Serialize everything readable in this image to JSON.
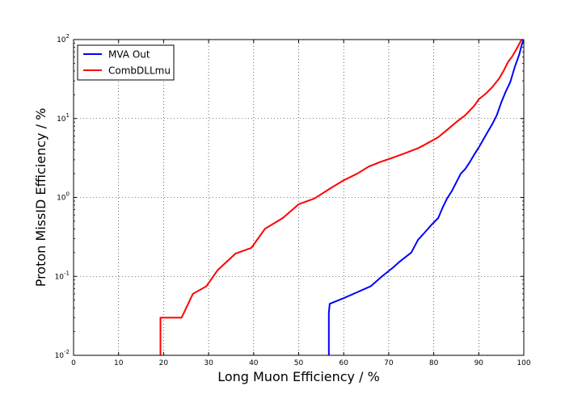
{
  "chart_data": {
    "type": "line",
    "title": "",
    "xlabel": "Long Muon Efficiency / %",
    "ylabel": "Proton MissID Efficiency / %",
    "xlim": [
      0,
      100
    ],
    "ylim": [
      0.01,
      100
    ],
    "yscale": "log",
    "grid": true,
    "legend_position": "top-left",
    "x_ticks": [
      "0",
      "10",
      "20",
      "30",
      "40",
      "50",
      "60",
      "70",
      "80",
      "90",
      "100"
    ],
    "y_ticks": [
      {
        "base": "10",
        "exp": "-2"
      },
      {
        "base": "10",
        "exp": "-1"
      },
      {
        "base": "10",
        "exp": "0"
      },
      {
        "base": "10",
        "exp": "1"
      },
      {
        "base": "10",
        "exp": "2"
      }
    ],
    "series": [
      {
        "name": "MVA Out",
        "color": "#0000ff",
        "points": [
          [
            56.7,
            0.01
          ],
          [
            56.7,
            0.035
          ],
          [
            56.9,
            0.045
          ],
          [
            60.0,
            0.053
          ],
          [
            63.0,
            0.063
          ],
          [
            66.0,
            0.075
          ],
          [
            68.5,
            0.1
          ],
          [
            71.0,
            0.13
          ],
          [
            72.5,
            0.155
          ],
          [
            75.0,
            0.2
          ],
          [
            76.5,
            0.29
          ],
          [
            78.0,
            0.36
          ],
          [
            79.5,
            0.45
          ],
          [
            81.0,
            0.55
          ],
          [
            82.0,
            0.75
          ],
          [
            83.0,
            0.98
          ],
          [
            84.0,
            1.2
          ],
          [
            85.0,
            1.55
          ],
          [
            86.0,
            2.0
          ],
          [
            87.0,
            2.3
          ],
          [
            88.0,
            2.8
          ],
          [
            89.0,
            3.5
          ],
          [
            90.0,
            4.3
          ],
          [
            91.0,
            5.4
          ],
          [
            92.0,
            6.8
          ],
          [
            93.0,
            8.5
          ],
          [
            94.0,
            11.0
          ],
          [
            95.0,
            16.0
          ],
          [
            96.0,
            22.0
          ],
          [
            97.0,
            29.0
          ],
          [
            98.0,
            45.0
          ],
          [
            99.0,
            65.0
          ],
          [
            99.6,
            88.0
          ],
          [
            100.0,
            100.0
          ]
        ]
      },
      {
        "name": "CombDLLmu",
        "color": "#ff0000",
        "points": [
          [
            19.3,
            0.01
          ],
          [
            19.3,
            0.03
          ],
          [
            24.0,
            0.03
          ],
          [
            26.5,
            0.06
          ],
          [
            29.5,
            0.075
          ],
          [
            32.0,
            0.12
          ],
          [
            36.0,
            0.195
          ],
          [
            39.5,
            0.23
          ],
          [
            42.5,
            0.4
          ],
          [
            46.5,
            0.55
          ],
          [
            50.0,
            0.82
          ],
          [
            53.5,
            0.97
          ],
          [
            57.0,
            1.3
          ],
          [
            60.0,
            1.65
          ],
          [
            63.0,
            2.0
          ],
          [
            65.5,
            2.45
          ],
          [
            68.0,
            2.8
          ],
          [
            71.0,
            3.2
          ],
          [
            74.0,
            3.7
          ],
          [
            76.5,
            4.2
          ],
          [
            79.0,
            5.0
          ],
          [
            81.0,
            5.8
          ],
          [
            83.0,
            7.2
          ],
          [
            85.0,
            9.0
          ],
          [
            87.0,
            11.0
          ],
          [
            89.0,
            14.5
          ],
          [
            90.0,
            17.5
          ],
          [
            91.5,
            20.5
          ],
          [
            93.0,
            25.0
          ],
          [
            94.5,
            32.0
          ],
          [
            95.5,
            40.0
          ],
          [
            96.5,
            52.0
          ],
          [
            97.5,
            62.0
          ],
          [
            98.5,
            78.0
          ],
          [
            99.3,
            95.0
          ],
          [
            99.6,
            100.0
          ]
        ]
      }
    ]
  }
}
